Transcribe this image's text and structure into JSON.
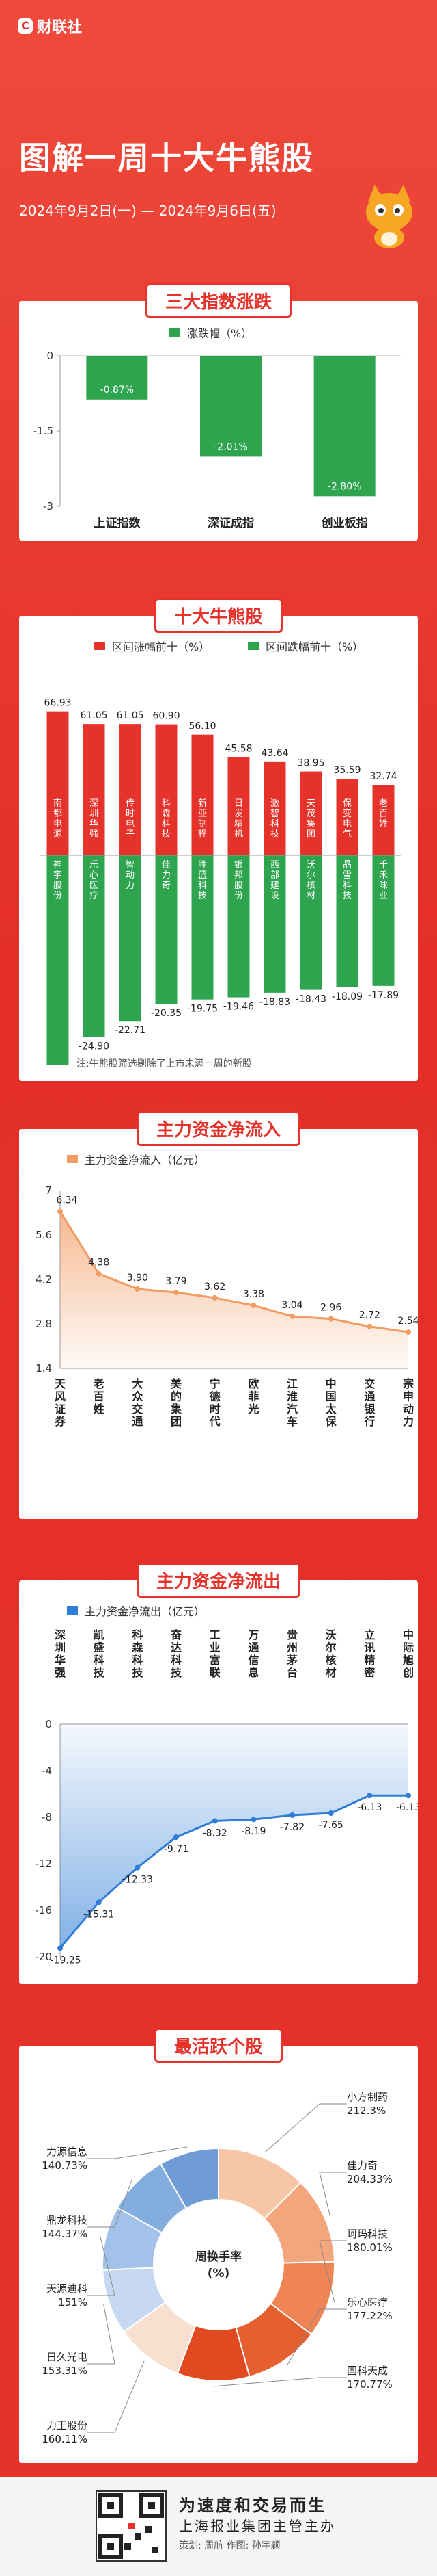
{
  "header": {
    "logo_text": "财联社",
    "title": "图解一周十大牛熊股",
    "date_range": "2024年9月2日(一) — 2024年9月6日(五)"
  },
  "colors": {
    "red": "#e5332b",
    "green": "#2ea44f",
    "orange": "#f29b62",
    "blue": "#2f7dd6"
  },
  "chart_data": [
    {
      "type": "bar",
      "title": "三大指数涨跌",
      "categories": [
        "上证指数",
        "深证成指",
        "创业板指"
      ],
      "series": [
        {
          "name": "涨跌幅（%）",
          "values": [
            -0.87,
            -2.01,
            -2.8
          ]
        }
      ],
      "value_labels": [
        "-0.87%",
        "-2.01%",
        "-2.80%"
      ],
      "ylim": [
        -3,
        0
      ],
      "yticks": [
        "0",
        "-1.5",
        "-3"
      ]
    },
    {
      "type": "bar",
      "title": "十大牛熊股",
      "series": [
        {
          "name": "区间涨幅前十（%）",
          "categories": [
            "南都电源",
            "深圳华强",
            "传时电子",
            "科森科技",
            "新亚制程",
            "日发精机",
            "激智科技",
            "天茂集团",
            "保变电气",
            "老百姓"
          ],
          "values": [
            66.93,
            61.05,
            61.05,
            60.9,
            56.1,
            45.58,
            43.64,
            38.95,
            35.59,
            32.74
          ]
        },
        {
          "name": "区间跌幅前十（%）",
          "categories": [
            "神宇股份",
            "乐心医疗",
            "智动力",
            "佳力奇",
            "胜蓝科技",
            "银邦股份",
            "西部建设",
            "沃尔核材",
            "晶雪科技",
            "千禾味业"
          ],
          "values": [
            -28.73,
            -24.9,
            -22.71,
            -20.35,
            -19.75,
            -19.46,
            -18.83,
            -18.43,
            -18.09,
            -17.89
          ]
        }
      ],
      "note": "注:牛熊股筛选剔除了上市未满一周的新股"
    },
    {
      "type": "area",
      "title": "主力资金净流入",
      "series_name": "主力资金净流入（亿元）",
      "categories": [
        "天风证券",
        "老百姓",
        "大众交通",
        "美的集团",
        "宁德时代",
        "欧菲光",
        "江淮汽车",
        "中国太保",
        "交通银行",
        "宗申动力"
      ],
      "values": [
        6.34,
        4.38,
        3.9,
        3.79,
        3.62,
        3.38,
        3.04,
        2.96,
        2.72,
        2.54
      ],
      "ylim": [
        1.4,
        7
      ],
      "yticks": [
        "7",
        "5.6",
        "4.2",
        "2.8",
        "1.4"
      ]
    },
    {
      "type": "area",
      "title": "主力资金净流出",
      "series_name": "主力资金净流出（亿元）",
      "categories": [
        "深圳华强",
        "凯盛科技",
        "科森科技",
        "奋达科技",
        "工业富联",
        "万通信息",
        "贵州茅台",
        "沃尔核材",
        "立讯精密",
        "中际旭创"
      ],
      "values": [
        -19.25,
        -15.31,
        -12.33,
        -9.71,
        -8.32,
        -8.19,
        -7.82,
        -7.65,
        -6.13,
        -6.13
      ],
      "ylim": [
        -20,
        0
      ],
      "yticks": [
        "0",
        "-4",
        "-8",
        "-12",
        "-16",
        "-20"
      ]
    },
    {
      "type": "pie",
      "title": "最活跃个股",
      "center_label": "周换手率\n(%)",
      "slices": [
        {
          "name": "小方制药",
          "value": 212.3,
          "label": "212.3%"
        },
        {
          "name": "佳力奇",
          "value": 204.33,
          "label": "204.33%"
        },
        {
          "name": "珂玛科技",
          "value": 180.01,
          "label": "180.01%"
        },
        {
          "name": "乐心医疗",
          "value": 177.22,
          "label": "177.22%"
        },
        {
          "name": "国科天成",
          "value": 170.77,
          "label": "170.77%"
        },
        {
          "name": "力王股份",
          "value": 160.11,
          "label": "160.11%"
        },
        {
          "name": "日久光电",
          "value": 153.31,
          "label": "153.31%"
        },
        {
          "name": "天源迪科",
          "value": 151,
          "label": "151%"
        },
        {
          "name": "鼎龙科技",
          "value": 144.37,
          "label": "144.37%"
        },
        {
          "name": "力源信息",
          "value": 140.73,
          "label": "140.73%"
        }
      ]
    }
  ],
  "footer": {
    "slogan": "为速度和交易而生",
    "owner": "上海报业集团主管主办",
    "credits": "策划: 周航    作图: 孙宇颖"
  }
}
